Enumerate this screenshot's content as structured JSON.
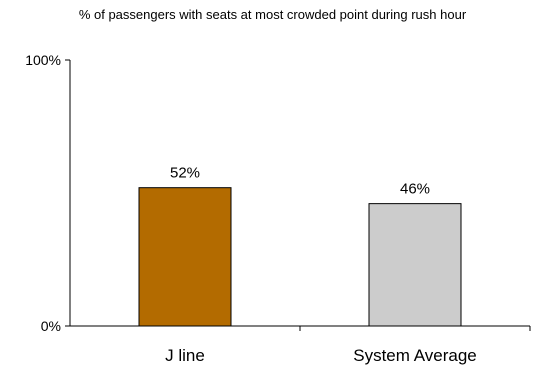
{
  "chart_data": {
    "type": "bar",
    "title": "% of passengers with seats at most crowded point during rush hour",
    "categories": [
      "J line",
      "System Average"
    ],
    "values": [
      52,
      46
    ],
    "data_labels": [
      "52%",
      "46%"
    ],
    "ylim": [
      0,
      100
    ],
    "y_ticks": [
      "0%",
      "100%"
    ],
    "bar_colors": [
      "#B36B00",
      "#CCCCCC"
    ],
    "xlabel": "",
    "ylabel": "",
    "grid": false,
    "legend": "none"
  }
}
